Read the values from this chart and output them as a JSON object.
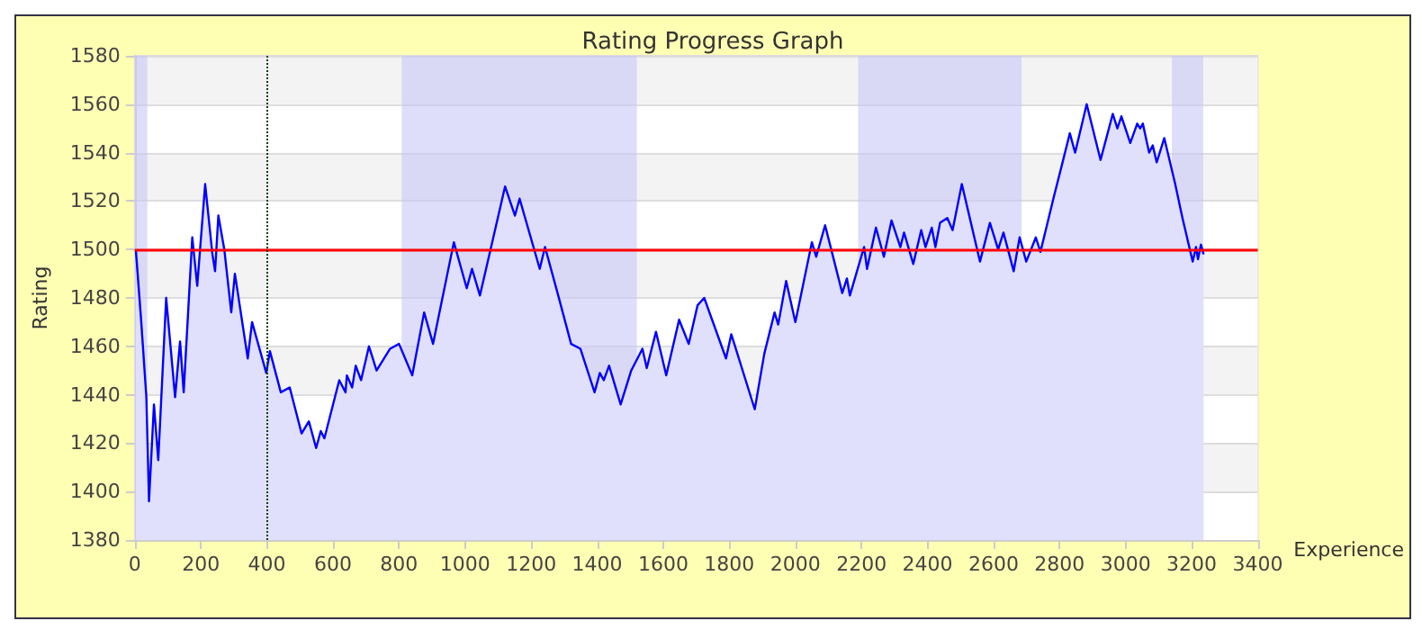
{
  "chart_data": {
    "type": "area",
    "title": "Rating Progress Graph",
    "xlabel": "Experience",
    "ylabel": "Rating",
    "xlim": [
      0,
      3400
    ],
    "xticks": [
      0,
      200,
      400,
      600,
      800,
      1000,
      1200,
      1400,
      1600,
      1800,
      2000,
      2200,
      2400,
      2600,
      2800,
      3000,
      3200,
      3400
    ],
    "ylim": [
      1380,
      1580
    ],
    "yticks": [
      1380,
      1400,
      1420,
      1440,
      1460,
      1480,
      1500,
      1520,
      1540,
      1560,
      1580
    ],
    "grid": "y",
    "marker": "none",
    "line_style": "solid",
    "series": [
      {
        "color": "#0000ff",
        "x": [
          3,
          19,
          35,
          43,
          58,
          71,
          95,
          122,
          137,
          148,
          174,
          189,
          213,
          235,
          243,
          253,
          271,
          292,
          303,
          342,
          355,
          398,
          409,
          442,
          469,
          505,
          527,
          549,
          563,
          574,
          619,
          638,
          642,
          658,
          669,
          685,
          709,
          732,
          773,
          800,
          840,
          876,
          903,
          966,
          1005,
          1021,
          1045,
          1121,
          1151,
          1165,
          1226,
          1242,
          1282,
          1321,
          1349,
          1392,
          1408,
          1420,
          1436,
          1471,
          1503,
          1537,
          1550,
          1578,
          1609,
          1648,
          1677,
          1704,
          1724,
          1790,
          1806,
          1877,
          1906,
          1937,
          1948,
          1972,
          2000,
          2050,
          2063,
          2090,
          2142,
          2156,
          2165,
          2208,
          2217,
          2244,
          2268,
          2291,
          2318,
          2329,
          2357,
          2381,
          2394,
          2413,
          2424,
          2438,
          2460,
          2476,
          2504,
          2559,
          2589,
          2614,
          2630,
          2661,
          2679,
          2699,
          2728,
          2742,
          2783,
          2809,
          2831,
          2847,
          2882,
          2924,
          2961,
          2975,
          2987,
          3014,
          3035,
          3044,
          3052,
          3071,
          3082,
          3094,
          3117,
          3150,
          3172,
          3203,
          3213,
          3219,
          3228,
          3236
        ],
        "values": [
          1500,
          1471,
          1439,
          1396,
          1436,
          1413,
          1480,
          1439,
          1462,
          1441,
          1505,
          1485,
          1527,
          1498,
          1491,
          1514,
          1500,
          1474,
          1490,
          1455,
          1470,
          1449,
          1458,
          1441,
          1443,
          1424,
          1429,
          1418,
          1425,
          1422,
          1446,
          1441,
          1448,
          1443,
          1452,
          1446,
          1460,
          1450,
          1459,
          1461,
          1448,
          1474,
          1461,
          1503,
          1484,
          1492,
          1481,
          1526,
          1514,
          1521,
          1492,
          1501,
          1481,
          1461,
          1459,
          1441,
          1449,
          1446,
          1452,
          1436,
          1450,
          1459,
          1451,
          1466,
          1448,
          1471,
          1461,
          1477,
          1480,
          1455,
          1465,
          1434,
          1457,
          1474,
          1469,
          1487,
          1470,
          1503,
          1497,
          1510,
          1482,
          1488,
          1481,
          1501,
          1492,
          1509,
          1497,
          1512,
          1501,
          1507,
          1494,
          1508,
          1501,
          1509,
          1501,
          1511,
          1513,
          1508,
          1527,
          1495,
          1511,
          1500,
          1507,
          1491,
          1505,
          1495,
          1505,
          1499,
          1522,
          1536,
          1548,
          1540,
          1560,
          1537,
          1556,
          1550,
          1555,
          1544,
          1552,
          1550,
          1552,
          1540,
          1543,
          1536,
          1546,
          1527,
          1513,
          1495,
          1501,
          1496,
          1502,
          1498
        ]
      }
    ],
    "ref_lines": [
      {
        "axis": "y",
        "value": 1500,
        "color": "#ff0000",
        "line_style": "solid"
      },
      {
        "axis": "x",
        "value": 400,
        "color": "#004000",
        "line_style": "dotted"
      }
    ],
    "bands": [
      {
        "axis": "x",
        "from": 0,
        "to": 38,
        "color": "#c8c8f8"
      },
      {
        "axis": "x",
        "from": 808,
        "to": 1520,
        "color": "#c8c8f8"
      },
      {
        "axis": "x",
        "from": 2190,
        "to": 2685,
        "color": "#c8c8f8"
      },
      {
        "axis": "x",
        "from": 3140,
        "to": 3235,
        "color": "#c8c8f8"
      }
    ]
  }
}
